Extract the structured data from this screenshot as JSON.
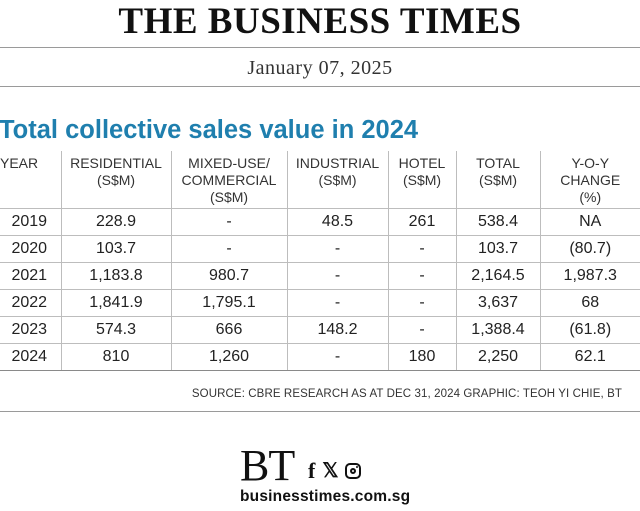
{
  "masthead": "THE BUSINESS TIMES",
  "date": "January 07, 2025",
  "chart_data": {
    "type": "table",
    "title": "Total collective sales value in 2024",
    "columns": [
      "YEAR",
      "RESIDENTIAL (S$M)",
      "MIXED-USE/ COMMERCIAL (S$M)",
      "INDUSTRIAL (S$M)",
      "HOTEL (S$M)",
      "TOTAL (S$M)",
      "Y-O-Y CHANGE (%)"
    ],
    "rows": [
      [
        "2019",
        "228.9",
        "-",
        "48.5",
        "261",
        "538.4",
        "NA"
      ],
      [
        "2020",
        "103.7",
        "-",
        "-",
        "-",
        "103.7",
        "(80.7)"
      ],
      [
        "2021",
        "1,183.8",
        "980.7",
        "-",
        "-",
        "2,164.5",
        "1,987.3"
      ],
      [
        "2022",
        "1,841.9",
        "1,795.1",
        "-",
        "-",
        "3,637",
        "68"
      ],
      [
        "2023",
        "574.3",
        "666",
        "148.2",
        "-",
        "1,388.4",
        "(61.8)"
      ],
      [
        "2024",
        "810",
        "1,260",
        "-",
        "180",
        "2,250",
        "62.1"
      ]
    ]
  },
  "source": "SOURCE: CBRE RESEARCH AS AT DEC 31, 2024   GRAPHIC: TEOH YI CHIE, BT",
  "footer": {
    "logo_text": "BT",
    "social_icons": [
      "facebook-icon",
      "x-icon",
      "instagram-icon"
    ],
    "facebook_glyph": "f",
    "x_glyph": "𝕏",
    "site": "businesstimes.com.sg"
  }
}
